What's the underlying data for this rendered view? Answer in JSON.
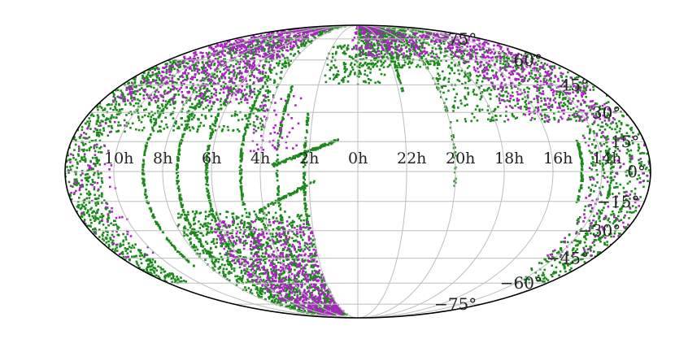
{
  "chart_data": {
    "type": "scatter",
    "projection": "mollweide",
    "title": "",
    "xlabel": "",
    "ylabel": "",
    "grid": true,
    "ra_tick_labels": [
      "10h",
      "8h",
      "6h",
      "4h",
      "2h",
      "0h",
      "22h",
      "20h",
      "18h",
      "16h",
      "14h"
    ],
    "ra_tick_values_hours": [
      10,
      8,
      6,
      4,
      2,
      0,
      22,
      20,
      18,
      16,
      14
    ],
    "dec_tick_labels": [
      "75°",
      "60°",
      "45°",
      "30°",
      "15°",
      "0°",
      "−15°",
      "−30°",
      "−45°",
      "−60°",
      "−75°"
    ],
    "dec_tick_values_deg": [
      75,
      60,
      45,
      30,
      15,
      0,
      -15,
      -30,
      -45,
      -60,
      -75
    ],
    "xlim_ra_hours": [
      12,
      -12
    ],
    "ylim_dec_deg": [
      -90,
      90
    ],
    "colors": {
      "series1": "#1a8a1a",
      "series2": "#b020c8",
      "grid": "#bdbdbd",
      "border": "#000000"
    },
    "series": [
      {
        "color": "#1a8a1a",
        "regions": [
          {
            "ra": [
              10.5,
              12.0
            ],
            "dec": [
              -60,
              60
            ],
            "n": 700
          },
          {
            "ra": [
              4.0,
              10.5
            ],
            "dec": [
              20,
              88
            ],
            "n": 1000
          },
          {
            "ra": [
              2.0,
              8.0
            ],
            "dec": [
              -85,
              -20
            ],
            "n": 1300
          },
          {
            "ra": [
              -12.0,
              -9.5
            ],
            "dec": [
              -60,
              65
            ],
            "n": 550
          },
          {
            "ra": [
              -10.0,
              -4.0
            ],
            "dec": [
              25,
              88
            ],
            "n": 650
          },
          {
            "ra": [
              -5.0,
              0.0
            ],
            "dec": [
              55,
              88
            ],
            "n": 450
          },
          {
            "ra": [
              -1.5,
              2.0
            ],
            "dec": [
              45,
              70
            ],
            "n": 150
          }
        ],
        "tracks": [
          {
            "ra": [
              8.8,
              8.8
            ],
            "dec": [
              -50,
              40
            ],
            "n": 160
          },
          {
            "ra": [
              7.4,
              7.4
            ],
            "dec": [
              -45,
              45
            ],
            "n": 160
          },
          {
            "ra": [
              6.2,
              6.2
            ],
            "dec": [
              -40,
              45
            ],
            "n": 150
          },
          {
            "ra": [
              4.8,
              4.8
            ],
            "dec": [
              -40,
              50
            ],
            "n": 150
          },
          {
            "ra": [
              3.3,
              3.3
            ],
            "dec": [
              -50,
              45
            ],
            "n": 130
          },
          {
            "ra": [
              2.2,
              2.2
            ],
            "dec": [
              -30,
              30
            ],
            "n": 90
          },
          {
            "ra": [
              3.5,
              0.8
            ],
            "dec": [
              3,
              16
            ],
            "n": 120
          },
          {
            "ra": [
              4.2,
              1.8
            ],
            "dec": [
              -20,
              -5
            ],
            "n": 80
          },
          {
            "ra": [
              -2.2,
              -2.2
            ],
            "dec": [
              40,
              70
            ],
            "n": 40
          },
          {
            "ra": [
              -4.0,
              -4.0
            ],
            "dec": [
              -10,
              50
            ],
            "n": 40
          },
          {
            "ra": [
              -9.2,
              -9.2
            ],
            "dec": [
              -15,
              15
            ],
            "n": 70
          },
          {
            "ra": [
              -10.4,
              -10.4
            ],
            "dec": [
              -40,
              20
            ],
            "n": 70
          },
          {
            "ra": [
              -11.2,
              -11.2
            ],
            "dec": [
              -55,
              30
            ],
            "n": 70
          }
        ]
      },
      {
        "color": "#b020c8",
        "regions": [
          {
            "ra": [
              5.0,
              11.5
            ],
            "dec": [
              35,
              85
            ],
            "n": 700
          },
          {
            "ra": [
              2.0,
              6.5
            ],
            "dec": [
              -85,
              -25
            ],
            "n": 650
          },
          {
            "ra": [
              -11.5,
              -6.5
            ],
            "dec": [
              25,
              80
            ],
            "n": 500
          },
          {
            "ra": [
              -5.5,
              0.5
            ],
            "dec": [
              62,
              88
            ],
            "n": 220
          },
          {
            "ra": [
              10.0,
              12.0
            ],
            "dec": [
              -45,
              25
            ],
            "n": 80
          },
          {
            "ra": [
              -12.0,
              -9.5
            ],
            "dec": [
              -45,
              20
            ],
            "n": 100
          },
          {
            "ra": [
              2.5,
              4.5
            ],
            "dec": [
              10,
              40
            ],
            "n": 60
          }
        ],
        "tracks": []
      }
    ]
  }
}
